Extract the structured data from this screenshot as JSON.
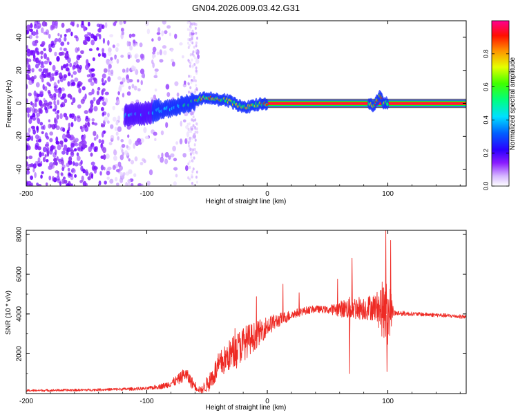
{
  "title": "GN04.2026.009.03.42.G31",
  "chart_data": [
    {
      "type": "heatmap",
      "panel": "spectrogram",
      "xlabel": "Height of straight line (km)",
      "ylabel": "Frequency (Hz)",
      "xlim": [
        -200,
        165
      ],
      "ylim": [
        -50,
        50
      ],
      "xticks": [
        -200,
        -100,
        0,
        100
      ],
      "yticks": [
        -40,
        -20,
        0,
        20,
        40
      ],
      "colorbar": {
        "label": "Normalized spectral amplitude",
        "range": [
          0,
          1
        ],
        "ticks": [
          0.0,
          0.2,
          0.4,
          0.6,
          0.8
        ],
        "tick_labels": [
          "0.0",
          "0.2",
          "0.4",
          "0.6",
          "0.8"
        ],
        "colormap": [
          "#ffffff",
          "#e6d0ff",
          "#7b00ff",
          "#0000ff",
          "#00ffff",
          "#00ff00",
          "#ffff00",
          "#ff8000",
          "#ff0000",
          "#ff00a0"
        ]
      },
      "ridge": {
        "description_points_x": [
          -115,
          -100,
          -90,
          -80,
          -70,
          -60,
          -55,
          -50,
          -45,
          -40,
          -35,
          -30,
          -25,
          -20,
          -15,
          -10,
          -5,
          0,
          20,
          40,
          60,
          80,
          86,
          88,
          90,
          92,
          94,
          96,
          100,
          130,
          165
        ],
        "description_points_y": [
          -7,
          -6,
          -4,
          -3,
          -1,
          1,
          3,
          4,
          3,
          2,
          2,
          1,
          -1,
          -2,
          -2,
          -1,
          0,
          0,
          0,
          0,
          0,
          0,
          0,
          -3,
          0,
          3,
          5,
          0,
          0,
          0,
          0
        ]
      },
      "noise_region_x": [
        -200,
        -85
      ]
    },
    {
      "type": "line",
      "panel": "snr",
      "xlabel": "Height of straight line (km)",
      "ylabel": "SNR (10 * v/v)",
      "xlim": [
        -200,
        165
      ],
      "ylim": [
        0,
        8200
      ],
      "xticks": [
        -200,
        -100,
        0,
        100
      ],
      "yticks": [
        2000,
        4000,
        6000,
        8000
      ],
      "color": "#ee2a24",
      "envelope_x": [
        -200,
        -150,
        -100,
        -85,
        -75,
        -68,
        -62,
        -55,
        -48,
        -40,
        -30,
        -20,
        -10,
        0,
        10,
        20,
        30,
        40,
        50,
        60,
        70,
        80,
        90,
        96,
        98,
        100,
        102,
        105,
        120,
        140,
        165
      ],
      "envelope_y": [
        150,
        180,
        250,
        400,
        650,
        1000,
        500,
        150,
        600,
        1400,
        2000,
        2500,
        2900,
        3400,
        3700,
        3950,
        4150,
        4250,
        4200,
        4250,
        4300,
        4300,
        4350,
        4200,
        4000,
        3900,
        4200,
        4050,
        4000,
        3950,
        3850
      ],
      "noise_amp_y": [
        60,
        60,
        80,
        150,
        250,
        350,
        300,
        150,
        500,
        700,
        800,
        900,
        700,
        500,
        350,
        250,
        200,
        180,
        180,
        400,
        600,
        600,
        700,
        1500,
        1800,
        1500,
        1200,
        150,
        100,
        100,
        100
      ],
      "peaks": [
        {
          "x": 98,
          "y": 8200
        },
        {
          "x": 102,
          "y": 7700
        },
        {
          "x": 99,
          "y": 1100
        },
        {
          "x": 68,
          "y": 1000
        },
        {
          "x": 70,
          "y": 6800
        }
      ]
    }
  ]
}
